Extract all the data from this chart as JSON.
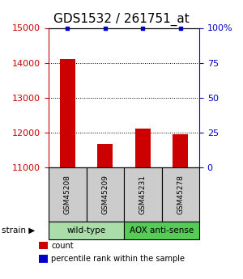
{
  "title": "GDS1532 / 261751_at",
  "samples": [
    "GSM45208",
    "GSM45209",
    "GSM45231",
    "GSM45278"
  ],
  "counts": [
    14100,
    11680,
    12120,
    11940
  ],
  "percentiles": [
    100,
    100,
    100,
    100
  ],
  "ylim_left": [
    11000,
    15000
  ],
  "ylim_right": [
    0,
    100
  ],
  "yticks_left": [
    11000,
    12000,
    13000,
    14000,
    15000
  ],
  "yticks_right": [
    0,
    25,
    50,
    75,
    100
  ],
  "ytick_labels_right": [
    "0",
    "25",
    "50",
    "75",
    "100%"
  ],
  "bar_color": "#cc0000",
  "dot_color": "#0000cc",
  "groups": [
    {
      "label": "wild-type",
      "indices": [
        0,
        1
      ],
      "color": "#aaddaa"
    },
    {
      "label": "AOX anti-sense",
      "indices": [
        2,
        3
      ],
      "color": "#55cc55"
    }
  ],
  "legend_items": [
    {
      "color": "#cc0000",
      "label": "count"
    },
    {
      "color": "#0000cc",
      "label": "percentile rank within the sample"
    }
  ],
  "sample_box_color": "#cccccc",
  "title_fontsize": 11,
  "tick_fontsize": 8,
  "bar_width": 0.4
}
